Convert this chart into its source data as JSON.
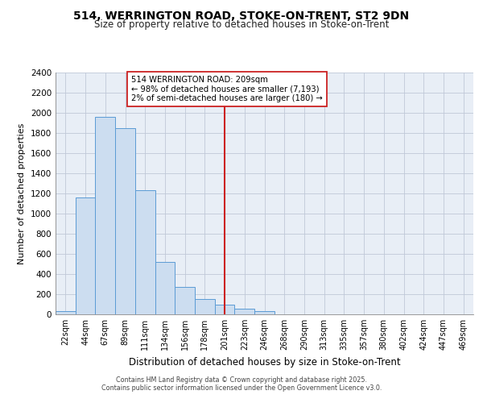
{
  "title1": "514, WERRINGTON ROAD, STOKE-ON-TRENT, ST2 9DN",
  "title2": "Size of property relative to detached houses in Stoke-on-Trent",
  "xlabel": "Distribution of detached houses by size in Stoke-on-Trent",
  "ylabel": "Number of detached properties",
  "categories": [
    "22sqm",
    "44sqm",
    "67sqm",
    "89sqm",
    "111sqm",
    "134sqm",
    "156sqm",
    "178sqm",
    "201sqm",
    "223sqm",
    "246sqm",
    "268sqm",
    "290sqm",
    "313sqm",
    "335sqm",
    "357sqm",
    "380sqm",
    "402sqm",
    "424sqm",
    "447sqm",
    "469sqm"
  ],
  "values": [
    30,
    1160,
    1960,
    1850,
    1235,
    520,
    275,
    155,
    95,
    55,
    35,
    0,
    0,
    0,
    0,
    0,
    0,
    0,
    0,
    0,
    0
  ],
  "bar_color": "#ccddf0",
  "bar_edge_color": "#5b9bd5",
  "red_line_index": 8,
  "annotation_title": "514 WERRINGTON ROAD: 209sqm",
  "annotation_line1": "← 98% of detached houses are smaller (7,193)",
  "annotation_line2": "2% of semi-detached houses are larger (180) →",
  "annotation_box_facecolor": "#ffffff",
  "annotation_box_edgecolor": "#cc2222",
  "red_line_color": "#cc2222",
  "footer1": "Contains HM Land Registry data © Crown copyright and database right 2025.",
  "footer2": "Contains public sector information licensed under the Open Government Licence v3.0.",
  "bg_color": "#ffffff",
  "plot_bg_color": "#e8eef6",
  "ylim": [
    0,
    2400
  ],
  "yticks": [
    0,
    200,
    400,
    600,
    800,
    1000,
    1200,
    1400,
    1600,
    1800,
    2000,
    2200,
    2400
  ]
}
